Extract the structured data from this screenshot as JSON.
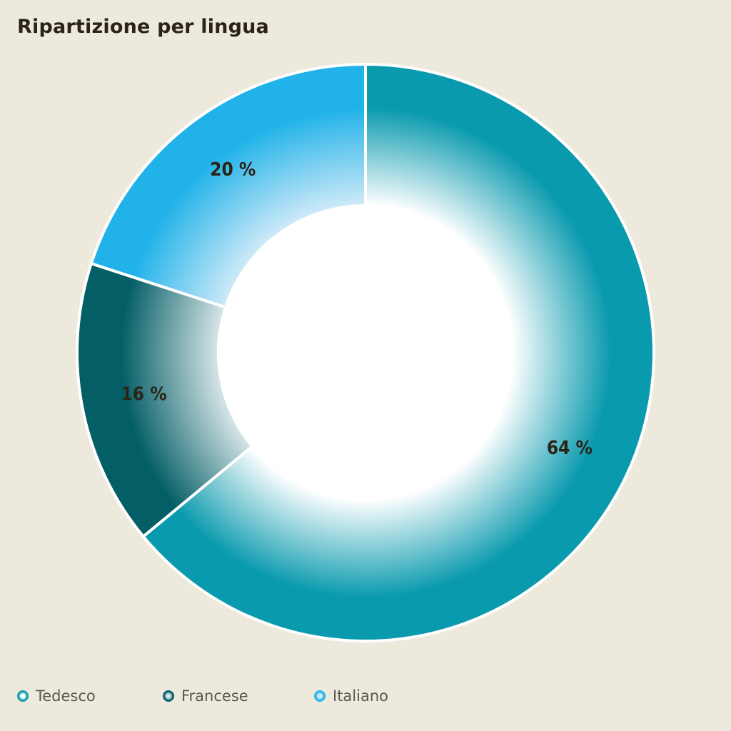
{
  "chart_data": {
    "type": "pie",
    "title": "Ripartizione per lingua",
    "slices": [
      {
        "name": "Tedesco",
        "value": 64,
        "label": "64 %",
        "color": "#0a9aae",
        "inner_color": "#ffffff"
      },
      {
        "name": "Francese",
        "value": 16,
        "label": "16 %",
        "color": "#045e66",
        "inner_color": "#d7e6e8"
      },
      {
        "name": "Italiano",
        "value": 20,
        "label": "20 %",
        "color": "#20b2e8",
        "inner_color": "#cfeaf8"
      }
    ],
    "legend_position": "bottom-left",
    "donut": true
  }
}
